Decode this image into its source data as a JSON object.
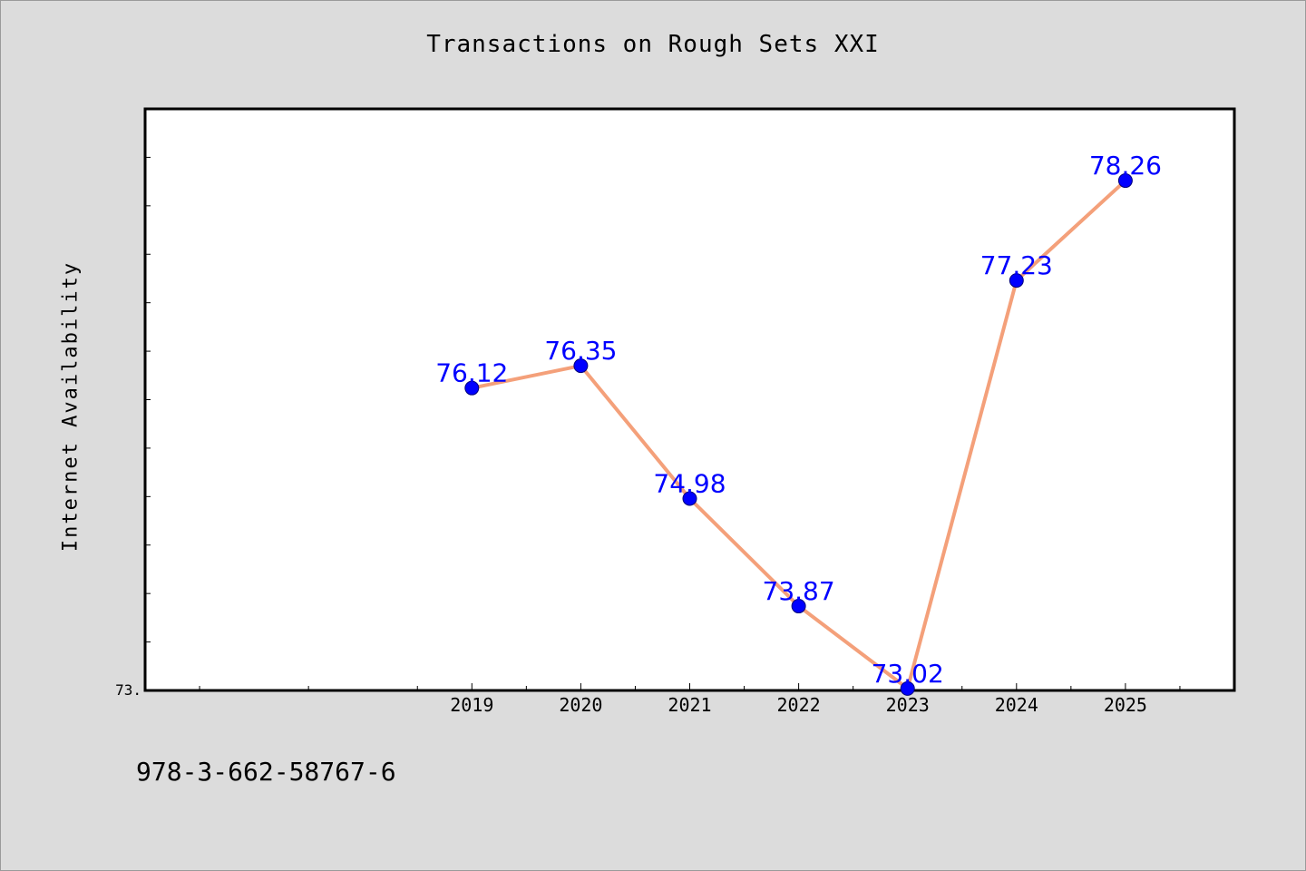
{
  "chart_data": {
    "type": "line",
    "title": "Transactions on Rough Sets XXI",
    "xlabel": "",
    "ylabel": "Internet Availability",
    "x_tick_labels": [
      "2019",
      "2020",
      "2021",
      "2022",
      "2023",
      "2024",
      "2025"
    ],
    "y_tick_label": "73.",
    "xlim": [
      2016,
      2026
    ],
    "ylim": [
      73.0,
      79.0
    ],
    "grid": false,
    "series": [
      {
        "x": [
          2019,
          2020,
          2021,
          2022,
          2023,
          2024,
          2025
        ],
        "values": [
          76.12,
          76.35,
          74.98,
          73.87,
          73.02,
          77.23,
          78.26
        ],
        "labels": [
          "76.12",
          "76.35",
          "74.98",
          "73.87",
          "73.02",
          "77.23",
          "78.26"
        ],
        "line_color": "#f4a07a",
        "marker_color": "#0000ff",
        "label_color": "#0000ff"
      }
    ]
  },
  "footer": {
    "code": "978-3-662-58767-6"
  }
}
